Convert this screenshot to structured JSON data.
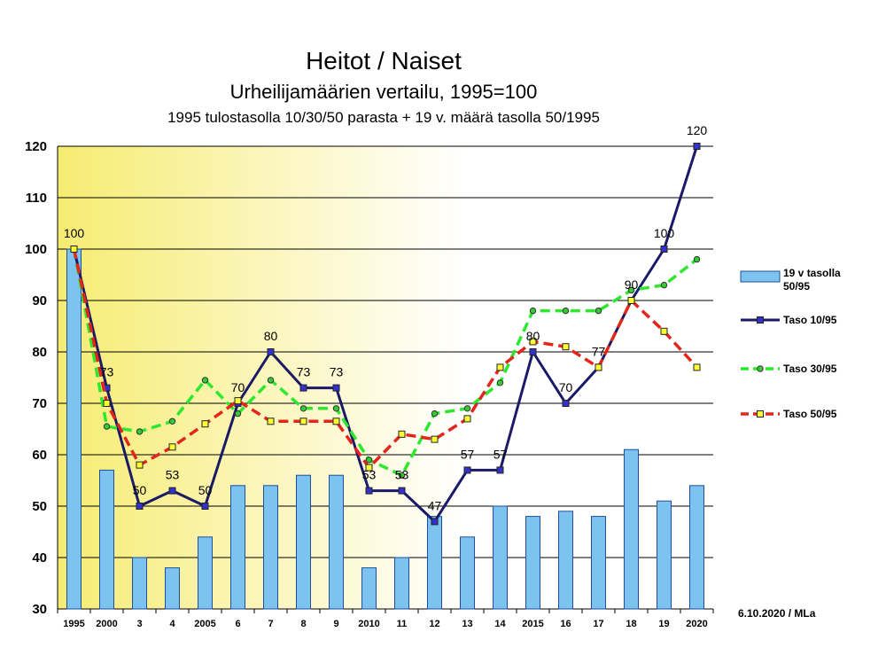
{
  "chart_data": {
    "type": "bar",
    "title": "Heitot / Naiset",
    "subtitle": "Urheilijamäärien vertailu, 1995=100",
    "subtitle2": "1995 tulostasolla 10/30/50 parasta + 19 v. määrä tasolla 50/1995",
    "xlabel": "",
    "ylabel": "",
    "categories": [
      "1995",
      "2000",
      "3",
      "4",
      "2005",
      "6",
      "7",
      "8",
      "9",
      "2010",
      "11",
      "12",
      "13",
      "14",
      "2015",
      "16",
      "17",
      "18",
      "19",
      "2020"
    ],
    "ylim": [
      30,
      120
    ],
    "yticks": [
      30,
      40,
      50,
      60,
      70,
      80,
      90,
      100,
      110,
      120
    ],
    "grid": true,
    "legend": "right",
    "background": [
      "#f6ec72",
      "#ffffff"
    ],
    "series": [
      {
        "name": "19 v tasolla 50/95",
        "type": "bar",
        "color": "#7cc3f0",
        "edge_color": "#1f4f9c",
        "values": [
          100,
          57,
          40,
          38,
          44,
          54,
          54,
          56,
          56,
          38,
          40,
          48,
          44,
          50,
          48,
          49,
          48,
          61,
          51,
          54
        ]
      },
      {
        "name": "Taso 10/95",
        "type": "line",
        "color": "#1a1a66",
        "dashed": false,
        "marker": "square",
        "marker_color": "#3333cc",
        "data_labels": true,
        "values": [
          100,
          73,
          50,
          53,
          50,
          70,
          80,
          73,
          73,
          53,
          53,
          47,
          57,
          57,
          80,
          70,
          77,
          90,
          100,
          120
        ]
      },
      {
        "name": "Taso 30/95",
        "type": "line",
        "color": "#2ee82e",
        "dashed": true,
        "marker": "circle",
        "marker_color": "#33cc33",
        "data_labels": false,
        "values": [
          100,
          65.5,
          64.5,
          66.5,
          74.5,
          68,
          74.5,
          69,
          69,
          59,
          56,
          68,
          69,
          74,
          88,
          88,
          88,
          92,
          93,
          98
        ]
      },
      {
        "name": "Taso 50/95",
        "type": "line",
        "color": "#e3261c",
        "dashed": true,
        "marker": "square",
        "marker_color": "#ffff33",
        "data_labels": false,
        "values": [
          100,
          70,
          58,
          61.5,
          66,
          70.5,
          66.5,
          66.5,
          66.5,
          57.5,
          64,
          63,
          67,
          77,
          82,
          81,
          77,
          90,
          84,
          77
        ]
      }
    ]
  },
  "footer": "6.10.2020 / MLa"
}
